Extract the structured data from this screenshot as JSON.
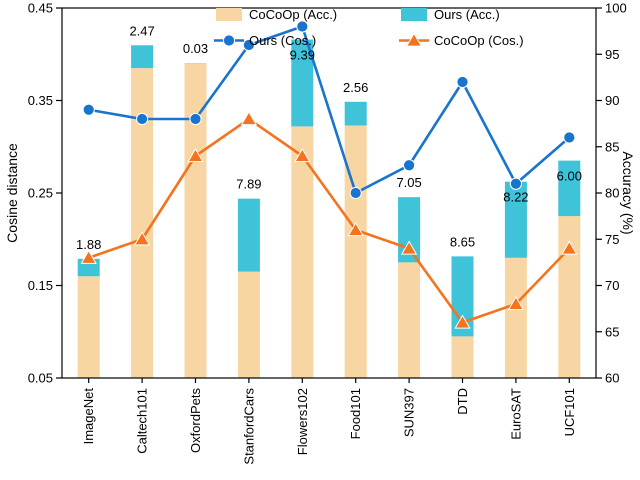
{
  "chart_data": {
    "type": "composite",
    "title": "",
    "categories": [
      "ImageNet",
      "Caltech101",
      "OxfordPets",
      "StanfordCars",
      "Flowers102",
      "Food101",
      "SUN397",
      "DTD",
      "EuroSAT",
      "UCF101"
    ],
    "bars": {
      "unit": "Accuracy (%)",
      "cocoop_acc": [
        71.0,
        93.5,
        94.0,
        71.5,
        87.2,
        87.3,
        72.5,
        64.5,
        73.0,
        77.5
      ],
      "ours_acc": [
        72.88,
        95.97,
        94.03,
        79.39,
        96.59,
        89.86,
        79.55,
        73.15,
        81.22,
        83.5
      ],
      "gain_labels": [
        "1.88",
        "2.47",
        "0.03",
        "7.89",
        "9.39",
        "2.56",
        "7.05",
        "8.65",
        "8.22",
        "6.00"
      ]
    },
    "line_series": [
      {
        "id": "ours-cos",
        "name": "Ours (Cos.)",
        "marker": "circle",
        "color_key": "ours_line",
        "values": [
          0.34,
          0.33,
          0.33,
          0.41,
          0.43,
          0.25,
          0.28,
          0.37,
          0.26,
          0.31
        ]
      },
      {
        "id": "cocoop-cos",
        "name": "CoCoOp (Cos.)",
        "marker": "triangle",
        "color_key": "cocoop_line",
        "values": [
          0.18,
          0.2,
          0.29,
          0.33,
          0.29,
          0.21,
          0.19,
          0.11,
          0.13,
          0.19
        ]
      }
    ],
    "left_axis": {
      "label": "Cosine distance",
      "min": 0.05,
      "max": 0.45,
      "ticks": [
        0.05,
        0.15,
        0.25,
        0.35,
        0.45
      ]
    },
    "right_axis": {
      "label": "Accuracy (%)",
      "min": 60,
      "max": 100,
      "ticks": [
        60,
        65,
        70,
        75,
        80,
        85,
        90,
        95,
        100
      ]
    },
    "legend": [
      {
        "label": "CoCoOp (Acc.)",
        "swatch": "bar",
        "color_key": "cocoop_bar"
      },
      {
        "label": "Ours (Acc.)",
        "swatch": "bar",
        "color_key": "ours_bar"
      },
      {
        "label": "Ours (Cos.)",
        "swatch": "line-circle",
        "color_key": "ours_line"
      },
      {
        "label": "CoCoOp (Cos.)",
        "swatch": "line-triangle",
        "color_key": "cocoop_line"
      }
    ],
    "colors": {
      "cocoop_bar": "#F7D6A3",
      "ours_bar": "#3EC3D9",
      "ours_line": "#1874CD",
      "cocoop_line": "#F5731D",
      "axis": "#000000"
    }
  }
}
